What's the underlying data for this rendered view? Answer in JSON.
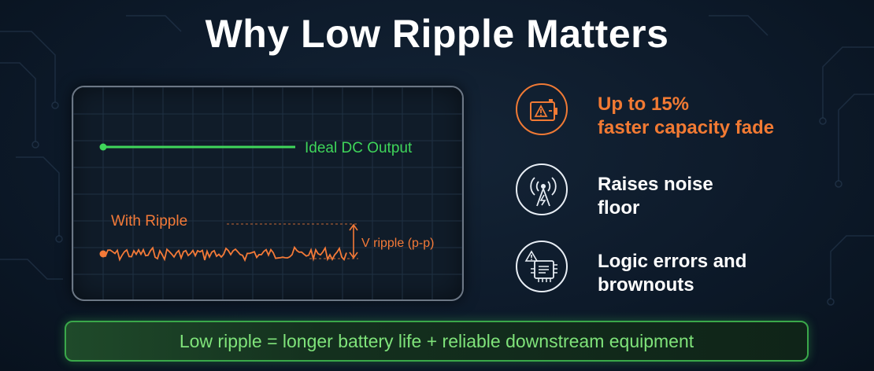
{
  "title": "Why Low Ripple Matters",
  "scope": {
    "ideal_label": "Ideal DC Output",
    "ripple_label": "With Ripple",
    "measure_label": "V ripple (p-p)"
  },
  "benefits": [
    {
      "icon": "battery-warning-icon",
      "text": "Up to 15%\nfaster capacity fade",
      "color": "#f27a33"
    },
    {
      "icon": "radio-tower-icon",
      "text": "Raises noise\nfloor",
      "color": "#ffffff"
    },
    {
      "icon": "chip-warning-icon",
      "text": "Logic errors and\nbrownouts",
      "color": "#ffffff"
    }
  ],
  "banner": "Low ripple = longer battery life + reliable downstream equipment",
  "colors": {
    "ideal_trace": "#3fd65a",
    "ripple_trace": "#f47a38",
    "banner_text": "#7fe37a"
  }
}
